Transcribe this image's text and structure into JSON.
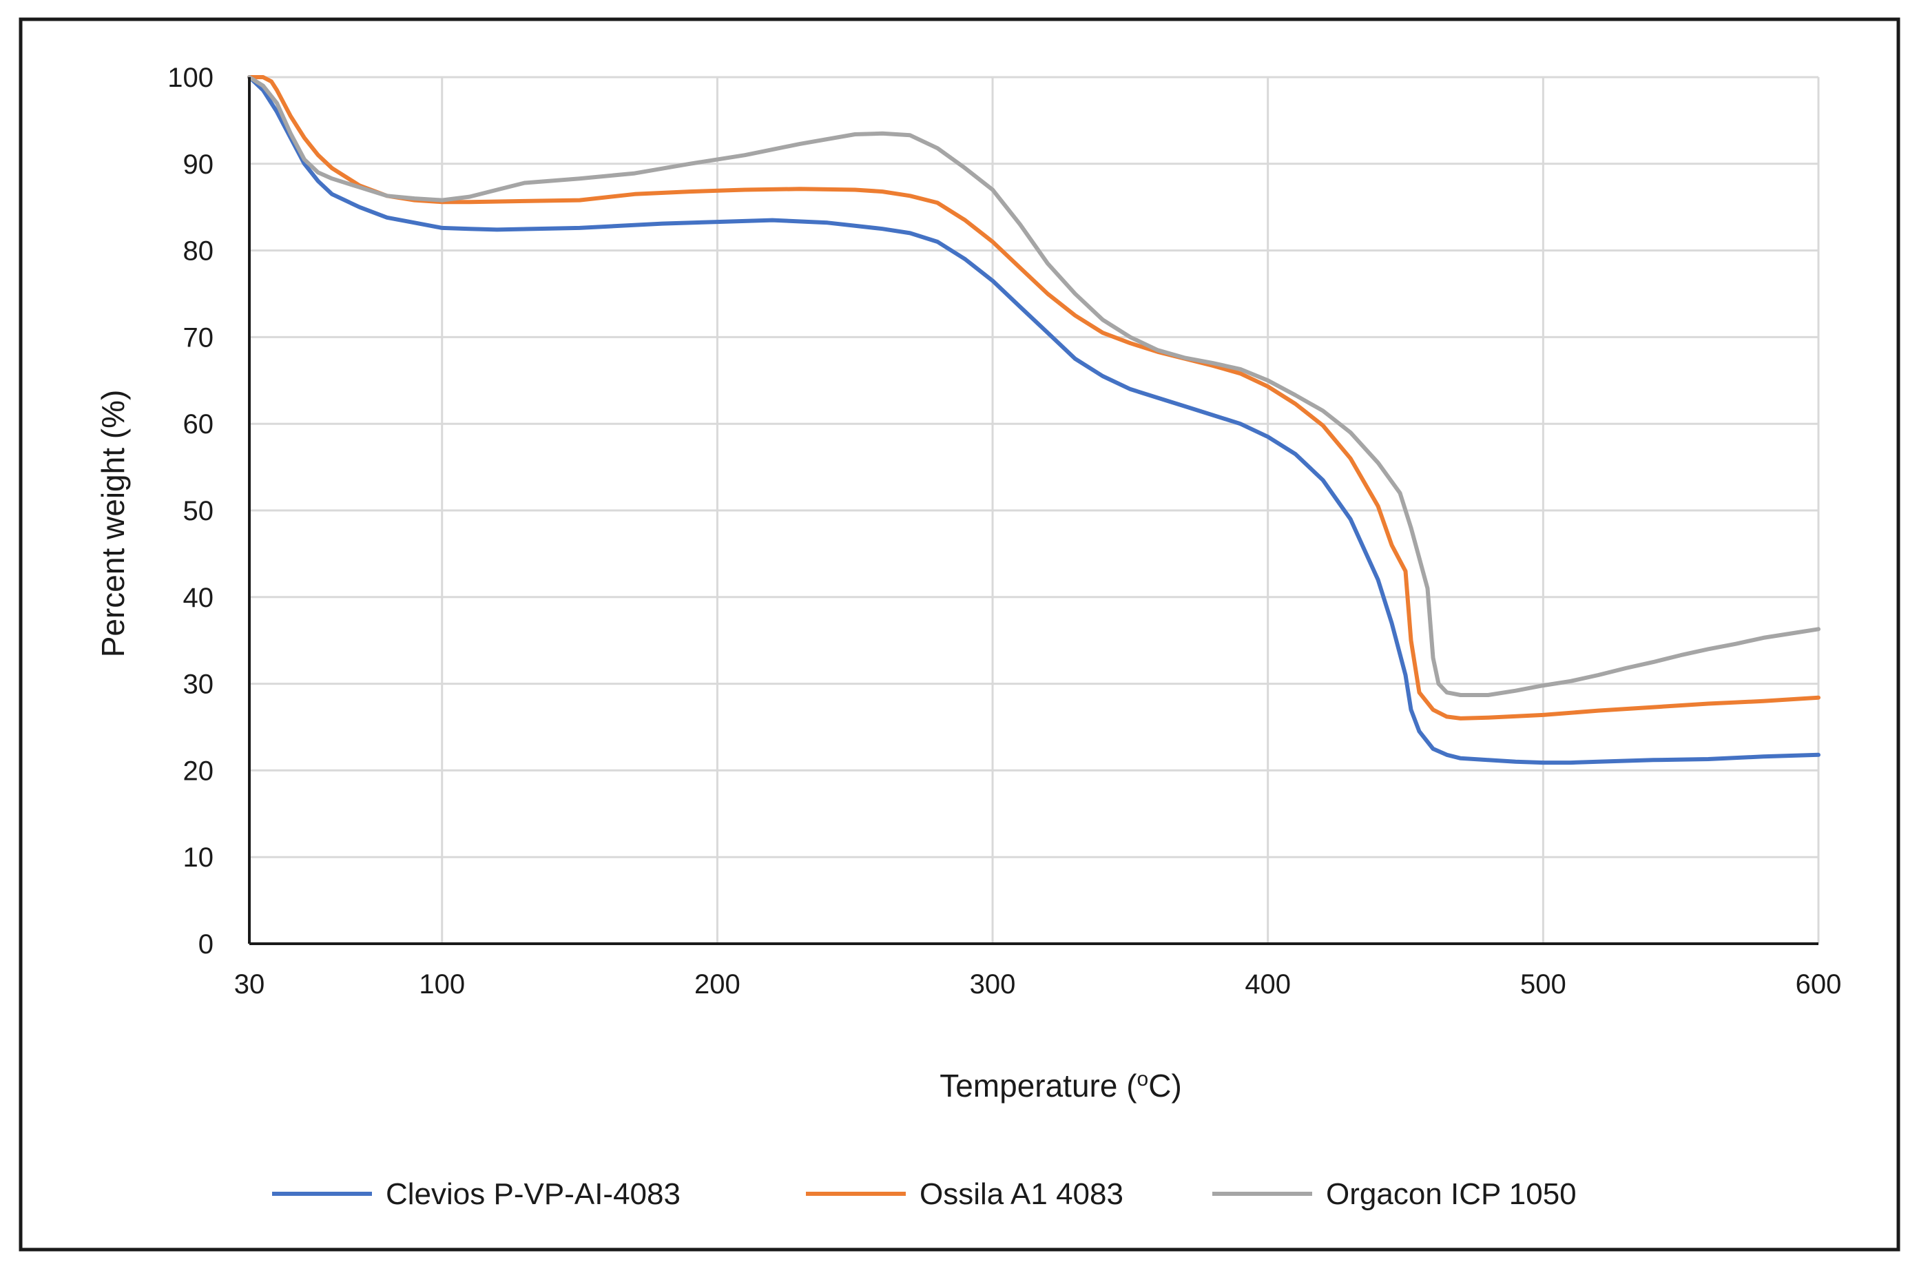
{
  "chart_data": {
    "type": "line",
    "title": "",
    "xlabel": "Temperature (",
    "xlabel_sup": "o",
    "xlabel_end": "C)",
    "ylabel": "Percent weight (%)",
    "xlim": [
      30,
      600
    ],
    "ylim": [
      0,
      100
    ],
    "grid": true,
    "legend_position": "bottom",
    "x_ticks": [
      30,
      100,
      200,
      300,
      400,
      500,
      600
    ],
    "x_tick_labels": [
      "30",
      "100",
      "200",
      "300",
      "400",
      "500",
      "600"
    ],
    "y_ticks": [
      0,
      10,
      20,
      30,
      40,
      50,
      60,
      70,
      80,
      90,
      100
    ],
    "y_tick_labels": [
      "0",
      "10",
      "20",
      "30",
      "40",
      "50",
      "60",
      "70",
      "80",
      "90",
      "100"
    ],
    "series": [
      {
        "name": "Clevios P-VP-AI-4083",
        "color": "#4472C4",
        "points": [
          [
            30,
            100
          ],
          [
            35,
            98.5
          ],
          [
            40,
            96
          ],
          [
            45,
            93
          ],
          [
            50,
            90
          ],
          [
            55,
            88
          ],
          [
            60,
            86.5
          ],
          [
            70,
            85
          ],
          [
            80,
            83.8
          ],
          [
            90,
            83.2
          ],
          [
            100,
            82.6
          ],
          [
            110,
            82.5
          ],
          [
            120,
            82.4
          ],
          [
            150,
            82.6
          ],
          [
            180,
            83.1
          ],
          [
            200,
            83.3
          ],
          [
            220,
            83.5
          ],
          [
            240,
            83.2
          ],
          [
            260,
            82.5
          ],
          [
            270,
            82
          ],
          [
            280,
            81
          ],
          [
            290,
            79
          ],
          [
            300,
            76.5
          ],
          [
            310,
            73.5
          ],
          [
            320,
            70.5
          ],
          [
            330,
            67.5
          ],
          [
            340,
            65.5
          ],
          [
            350,
            64
          ],
          [
            360,
            63
          ],
          [
            370,
            62
          ],
          [
            380,
            61
          ],
          [
            390,
            60
          ],
          [
            400,
            58.5
          ],
          [
            410,
            56.5
          ],
          [
            420,
            53.5
          ],
          [
            430,
            49
          ],
          [
            440,
            42
          ],
          [
            445,
            37
          ],
          [
            450,
            31
          ],
          [
            452,
            27
          ],
          [
            455,
            24.5
          ],
          [
            460,
            22.5
          ],
          [
            465,
            21.8
          ],
          [
            470,
            21.4
          ],
          [
            480,
            21.2
          ],
          [
            490,
            21
          ],
          [
            500,
            20.9
          ],
          [
            510,
            20.9
          ],
          [
            520,
            21
          ],
          [
            540,
            21.2
          ],
          [
            560,
            21.3
          ],
          [
            580,
            21.6
          ],
          [
            600,
            21.8
          ]
        ]
      },
      {
        "name": "Ossila A1 4083",
        "color": "#ED7D31",
        "points": [
          [
            30,
            100
          ],
          [
            35,
            100
          ],
          [
            38,
            99.5
          ],
          [
            40,
            98.5
          ],
          [
            45,
            95.5
          ],
          [
            50,
            93
          ],
          [
            55,
            91
          ],
          [
            60,
            89.5
          ],
          [
            70,
            87.5
          ],
          [
            80,
            86.3
          ],
          [
            90,
            85.8
          ],
          [
            100,
            85.6
          ],
          [
            110,
            85.6
          ],
          [
            130,
            85.7
          ],
          [
            150,
            85.8
          ],
          [
            170,
            86.5
          ],
          [
            190,
            86.8
          ],
          [
            210,
            87
          ],
          [
            230,
            87.1
          ],
          [
            250,
            87
          ],
          [
            260,
            86.8
          ],
          [
            270,
            86.3
          ],
          [
            280,
            85.5
          ],
          [
            290,
            83.5
          ],
          [
            300,
            81
          ],
          [
            310,
            78
          ],
          [
            320,
            75
          ],
          [
            330,
            72.5
          ],
          [
            340,
            70.5
          ],
          [
            350,
            69.3
          ],
          [
            360,
            68.3
          ],
          [
            370,
            67.5
          ],
          [
            380,
            66.7
          ],
          [
            390,
            65.8
          ],
          [
            400,
            64.3
          ],
          [
            410,
            62.3
          ],
          [
            420,
            59.8
          ],
          [
            430,
            56
          ],
          [
            440,
            50.5
          ],
          [
            445,
            46
          ],
          [
            450,
            43
          ],
          [
            452,
            35
          ],
          [
            455,
            29
          ],
          [
            460,
            27
          ],
          [
            465,
            26.2
          ],
          [
            470,
            26
          ],
          [
            480,
            26.1
          ],
          [
            500,
            26.4
          ],
          [
            520,
            26.9
          ],
          [
            540,
            27.3
          ],
          [
            560,
            27.7
          ],
          [
            580,
            28
          ],
          [
            600,
            28.4
          ]
        ]
      },
      {
        "name": "Orgacon ICP 1050",
        "color": "#A5A5A5",
        "points": [
          [
            30,
            100
          ],
          [
            35,
            99
          ],
          [
            40,
            97
          ],
          [
            45,
            93.5
          ],
          [
            50,
            90.5
          ],
          [
            55,
            89
          ],
          [
            60,
            88.3
          ],
          [
            70,
            87.3
          ],
          [
            80,
            86.3
          ],
          [
            90,
            86
          ],
          [
            100,
            85.8
          ],
          [
            110,
            86.2
          ],
          [
            120,
            87
          ],
          [
            130,
            87.8
          ],
          [
            150,
            88.3
          ],
          [
            170,
            88.9
          ],
          [
            190,
            90
          ],
          [
            210,
            91
          ],
          [
            230,
            92.3
          ],
          [
            250,
            93.4
          ],
          [
            260,
            93.5
          ],
          [
            270,
            93.3
          ],
          [
            280,
            91.8
          ],
          [
            290,
            89.5
          ],
          [
            300,
            87
          ],
          [
            310,
            83
          ],
          [
            320,
            78.5
          ],
          [
            330,
            75
          ],
          [
            340,
            72
          ],
          [
            350,
            70
          ],
          [
            360,
            68.5
          ],
          [
            370,
            67.6
          ],
          [
            380,
            67
          ],
          [
            390,
            66.3
          ],
          [
            400,
            65
          ],
          [
            410,
            63.3
          ],
          [
            420,
            61.5
          ],
          [
            430,
            59
          ],
          [
            440,
            55.5
          ],
          [
            448,
            52
          ],
          [
            452,
            48
          ],
          [
            458,
            41
          ],
          [
            460,
            33
          ],
          [
            462,
            30
          ],
          [
            465,
            29
          ],
          [
            470,
            28.7
          ],
          [
            480,
            28.7
          ],
          [
            490,
            29.2
          ],
          [
            500,
            29.8
          ],
          [
            510,
            30.3
          ],
          [
            520,
            31
          ],
          [
            530,
            31.8
          ],
          [
            540,
            32.5
          ],
          [
            550,
            33.3
          ],
          [
            560,
            34
          ],
          [
            570,
            34.6
          ],
          [
            580,
            35.3
          ],
          [
            590,
            35.8
          ],
          [
            600,
            36.3
          ]
        ]
      }
    ]
  }
}
